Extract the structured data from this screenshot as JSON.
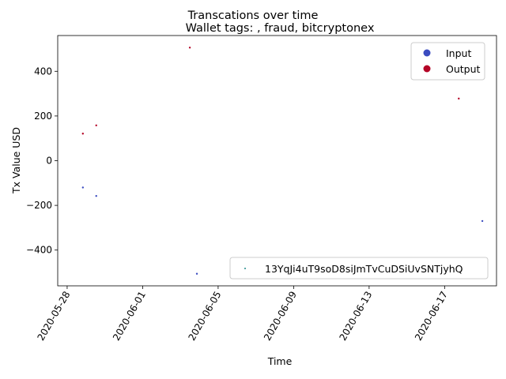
{
  "chart_data": {
    "type": "scatter",
    "suptitle": "Transcations over time",
    "title": "Wallet tags: , fraud, bitcryptonex",
    "xlabel": "Time",
    "ylabel": "Tx Value USD",
    "x_ticks": [
      "2020-05-28",
      "2020-06-01",
      "2020-06-05",
      "2020-06-09",
      "2020-06-13",
      "2020-06-17"
    ],
    "y_ticks": [
      -400,
      -200,
      0,
      200,
      400
    ],
    "xlim": [
      "2020-05-27 12:00",
      "2020-06-19 18:00"
    ],
    "ylim": [
      -560,
      560
    ],
    "grid": false,
    "legend_colors": {
      "placement": "upper right",
      "entries": [
        {
          "label": "Input",
          "color": "#3b4cc0"
        },
        {
          "label": "Output",
          "color": "#b40426"
        }
      ]
    },
    "legend_series": {
      "placement": "lower right",
      "entries": [
        {
          "label": "13YqJi4uT9soD8siJmTvCuDSiUvSNTjyhQ",
          "color": "#1f8a8a"
        }
      ]
    },
    "points": [
      {
        "x": "2020-05-28 20:00",
        "y": -120,
        "kind": "Input"
      },
      {
        "x": "2020-05-28 20:00",
        "y": 121,
        "kind": "Output"
      },
      {
        "x": "2020-05-29 13:00",
        "y": -158,
        "kind": "Input"
      },
      {
        "x": "2020-05-29 13:00",
        "y": 158,
        "kind": "Output"
      },
      {
        "x": "2020-06-03 12:00",
        "y": 506,
        "kind": "Output"
      },
      {
        "x": "2020-06-03 21:00",
        "y": -506,
        "kind": "Input"
      },
      {
        "x": "2020-06-17 18:00",
        "y": 278,
        "kind": "Output"
      },
      {
        "x": "2020-06-19 00:00",
        "y": -270,
        "kind": "Input"
      }
    ]
  }
}
